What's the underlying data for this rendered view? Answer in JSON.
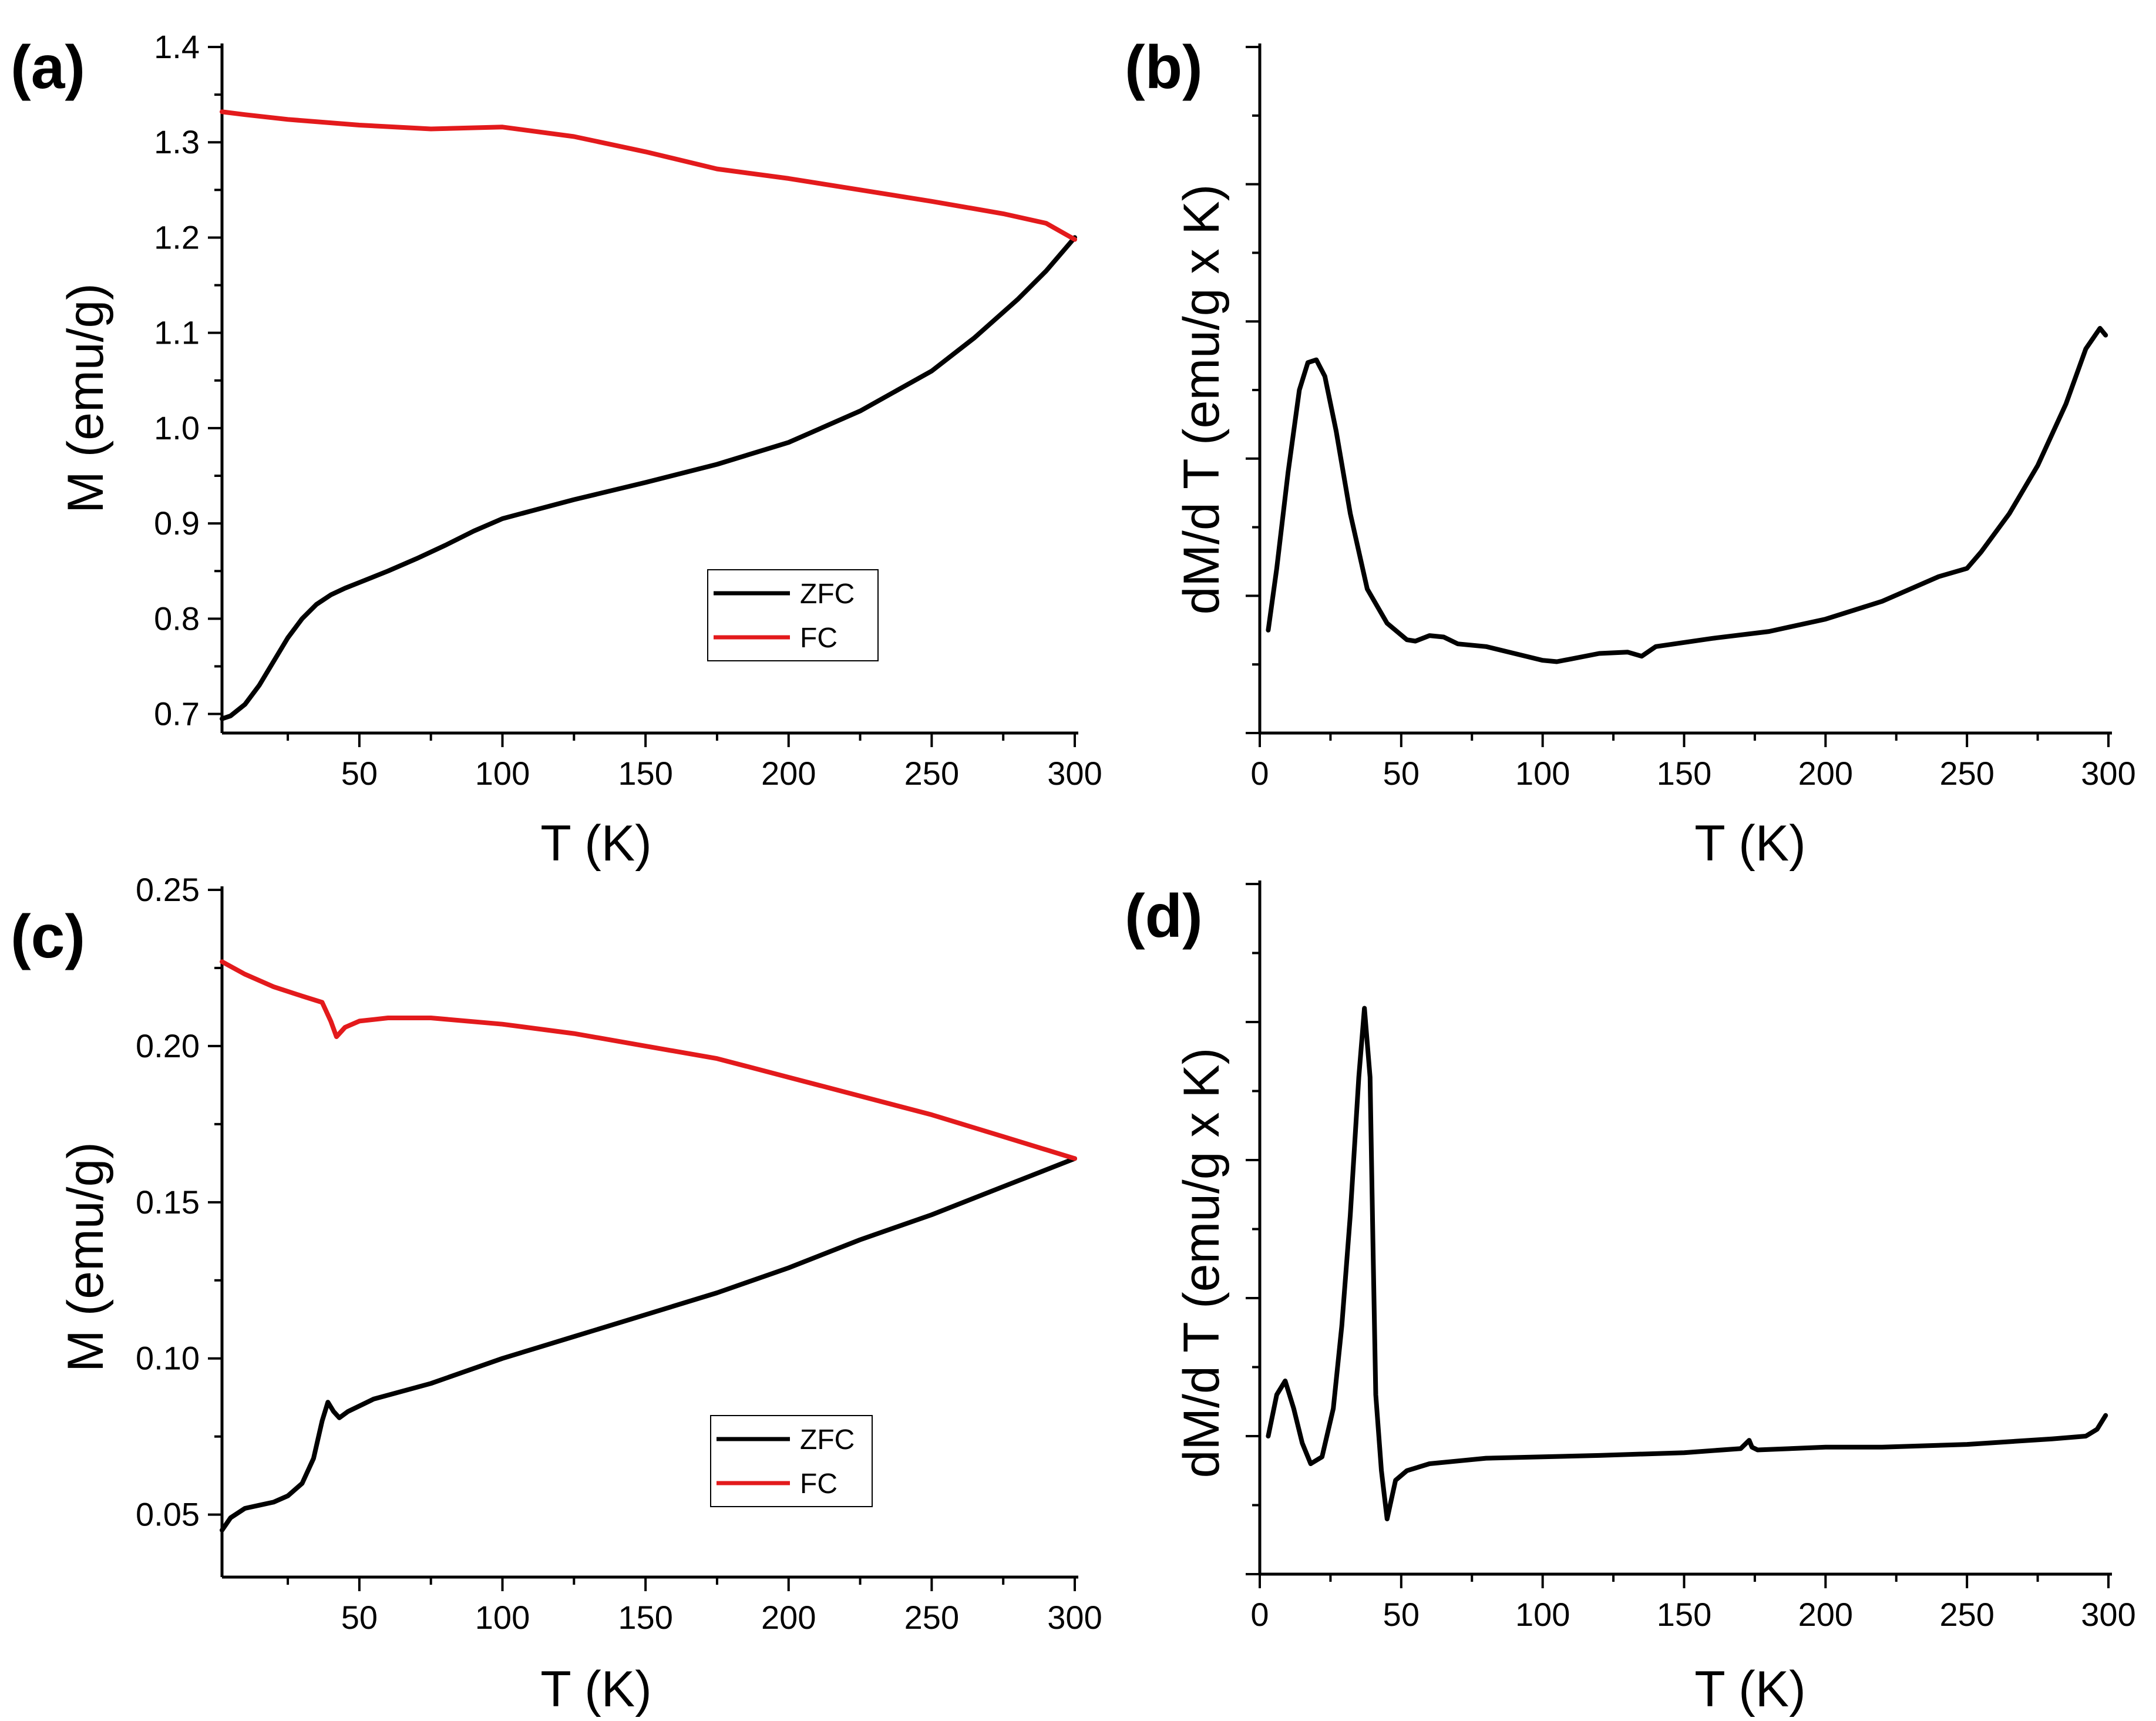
{
  "colors": {
    "zfc": "#000000",
    "fc": "#e31a1c",
    "axis": "#000000",
    "background": "#ffffff"
  },
  "chart_data": [
    {
      "id": "a",
      "panel_label": "(a)",
      "type": "line",
      "xlabel": "T (K)",
      "ylabel": "M (emu/g)",
      "xlim": [
        2,
        300
      ],
      "ylim": [
        0.68,
        1.4
      ],
      "xticks": [
        50,
        100,
        150,
        200,
        250,
        300
      ],
      "yticks": [
        0.7,
        0.8,
        0.9,
        1.0,
        1.1,
        1.2,
        1.3,
        1.4
      ],
      "ytick_labels": [
        "0.7",
        "0.8",
        "0.9",
        "1.0",
        "1.1",
        "1.2",
        "1.3",
        "1.4"
      ],
      "show_ytick_labels": true,
      "legend": {
        "position": "lower-center",
        "entries": [
          "ZFC",
          "FC"
        ]
      },
      "series": [
        {
          "name": "ZFC",
          "color": "#000000",
          "x": [
            2,
            5,
            10,
            15,
            20,
            25,
            30,
            35,
            40,
            45,
            50,
            60,
            70,
            80,
            90,
            100,
            110,
            125,
            150,
            175,
            200,
            225,
            250,
            265,
            280,
            290,
            300
          ],
          "y": [
            0.695,
            0.698,
            0.71,
            0.73,
            0.755,
            0.78,
            0.8,
            0.815,
            0.825,
            0.832,
            0.838,
            0.85,
            0.863,
            0.877,
            0.892,
            0.905,
            0.913,
            0.925,
            0.943,
            0.962,
            0.985,
            1.018,
            1.06,
            1.095,
            1.135,
            1.165,
            1.2
          ]
        },
        {
          "name": "FC",
          "color": "#e31a1c",
          "x": [
            2,
            10,
            25,
            50,
            75,
            100,
            125,
            150,
            175,
            200,
            225,
            250,
            275,
            290,
            300
          ],
          "y": [
            1.332,
            1.329,
            1.324,
            1.318,
            1.314,
            1.316,
            1.306,
            1.29,
            1.272,
            1.262,
            1.25,
            1.238,
            1.225,
            1.215,
            1.198
          ]
        }
      ]
    },
    {
      "id": "b",
      "panel_label": "(b)",
      "type": "line",
      "xlabel": "T (K)",
      "ylabel": "dM/d T (emu/g x K)",
      "xlim": [
        0,
        300
      ],
      "ylim": [
        0,
        5
      ],
      "xticks": [
        0,
        50,
        100,
        150,
        200,
        250,
        300
      ],
      "yticks": [
        0,
        1,
        2,
        3,
        4,
        5
      ],
      "ytick_labels": [],
      "show_ytick_labels": false,
      "series": [
        {
          "name": "dM/dT",
          "color": "#000000",
          "x": [
            3,
            6,
            10,
            14,
            17,
            20,
            23,
            27,
            32,
            38,
            45,
            52,
            55,
            60,
            65,
            70,
            80,
            90,
            100,
            105,
            110,
            120,
            130,
            135,
            140,
            150,
            160,
            180,
            200,
            220,
            240,
            250,
            255,
            265,
            275,
            285,
            292,
            297,
            299
          ],
          "y": [
            0.75,
            1.2,
            1.9,
            2.5,
            2.7,
            2.72,
            2.6,
            2.2,
            1.6,
            1.05,
            0.8,
            0.68,
            0.67,
            0.71,
            0.7,
            0.65,
            0.63,
            0.58,
            0.53,
            0.52,
            0.54,
            0.58,
            0.59,
            0.56,
            0.63,
            0.66,
            0.69,
            0.74,
            0.83,
            0.96,
            1.14,
            1.2,
            1.32,
            1.6,
            1.95,
            2.4,
            2.8,
            2.95,
            2.9
          ]
        }
      ]
    },
    {
      "id": "c",
      "panel_label": "(c)",
      "type": "line",
      "xlabel": "T (K)",
      "ylabel": "M (emu/g)",
      "xlim": [
        2,
        300
      ],
      "ylim": [
        0.03,
        0.25
      ],
      "xticks": [
        50,
        100,
        150,
        200,
        250,
        300
      ],
      "yticks": [
        0.05,
        0.1,
        0.15,
        0.2,
        0.25
      ],
      "ytick_labels": [
        "0.05",
        "0.10",
        "0.15",
        "0.20",
        "0.25"
      ],
      "show_ytick_labels": true,
      "legend": {
        "position": "lower-center",
        "entries": [
          "ZFC",
          "FC"
        ]
      },
      "series": [
        {
          "name": "ZFC",
          "color": "#000000",
          "x": [
            2,
            5,
            10,
            15,
            20,
            25,
            30,
            34,
            37,
            39,
            41,
            43,
            46,
            55,
            75,
            100,
            125,
            150,
            175,
            200,
            225,
            250,
            275,
            300
          ],
          "y": [
            0.045,
            0.049,
            0.052,
            0.053,
            0.054,
            0.056,
            0.06,
            0.068,
            0.08,
            0.086,
            0.083,
            0.081,
            0.083,
            0.087,
            0.092,
            0.1,
            0.107,
            0.114,
            0.121,
            0.129,
            0.138,
            0.146,
            0.155,
            0.164
          ]
        },
        {
          "name": "FC",
          "color": "#e31a1c",
          "x": [
            2,
            10,
            20,
            30,
            37,
            40,
            42,
            45,
            50,
            60,
            75,
            100,
            125,
            150,
            175,
            200,
            225,
            250,
            275,
            300
          ],
          "y": [
            0.227,
            0.223,
            0.219,
            0.216,
            0.214,
            0.208,
            0.203,
            0.206,
            0.208,
            0.209,
            0.209,
            0.207,
            0.204,
            0.2,
            0.196,
            0.19,
            0.184,
            0.178,
            0.171,
            0.164
          ]
        }
      ]
    },
    {
      "id": "d",
      "panel_label": "(d)",
      "type": "line",
      "xlabel": "T (K)",
      "ylabel": "dM/d T (emu/g x K)",
      "xlim": [
        0,
        300
      ],
      "ylim": [
        0,
        5
      ],
      "xticks": [
        0,
        50,
        100,
        150,
        200,
        250,
        300
      ],
      "yticks": [
        0,
        1,
        2,
        3,
        4,
        5
      ],
      "ytick_labels": [],
      "show_ytick_labels": false,
      "series": [
        {
          "name": "dM/dT",
          "color": "#000000",
          "x": [
            3,
            6,
            9,
            12,
            15,
            18,
            22,
            26,
            29,
            32,
            35,
            37,
            39,
            40,
            41,
            43,
            45,
            48,
            52,
            60,
            70,
            80,
            100,
            120,
            150,
            170,
            173,
            174,
            176,
            200,
            220,
            250,
            280,
            292,
            296,
            299
          ],
          "y": [
            1.0,
            1.3,
            1.4,
            1.2,
            0.95,
            0.8,
            0.85,
            1.2,
            1.8,
            2.6,
            3.6,
            4.1,
            3.6,
            2.4,
            1.3,
            0.75,
            0.4,
            0.68,
            0.75,
            0.8,
            0.82,
            0.84,
            0.85,
            0.86,
            0.88,
            0.91,
            0.97,
            0.92,
            0.9,
            0.92,
            0.92,
            0.94,
            0.98,
            1.0,
            1.05,
            1.15
          ]
        }
      ]
    }
  ]
}
